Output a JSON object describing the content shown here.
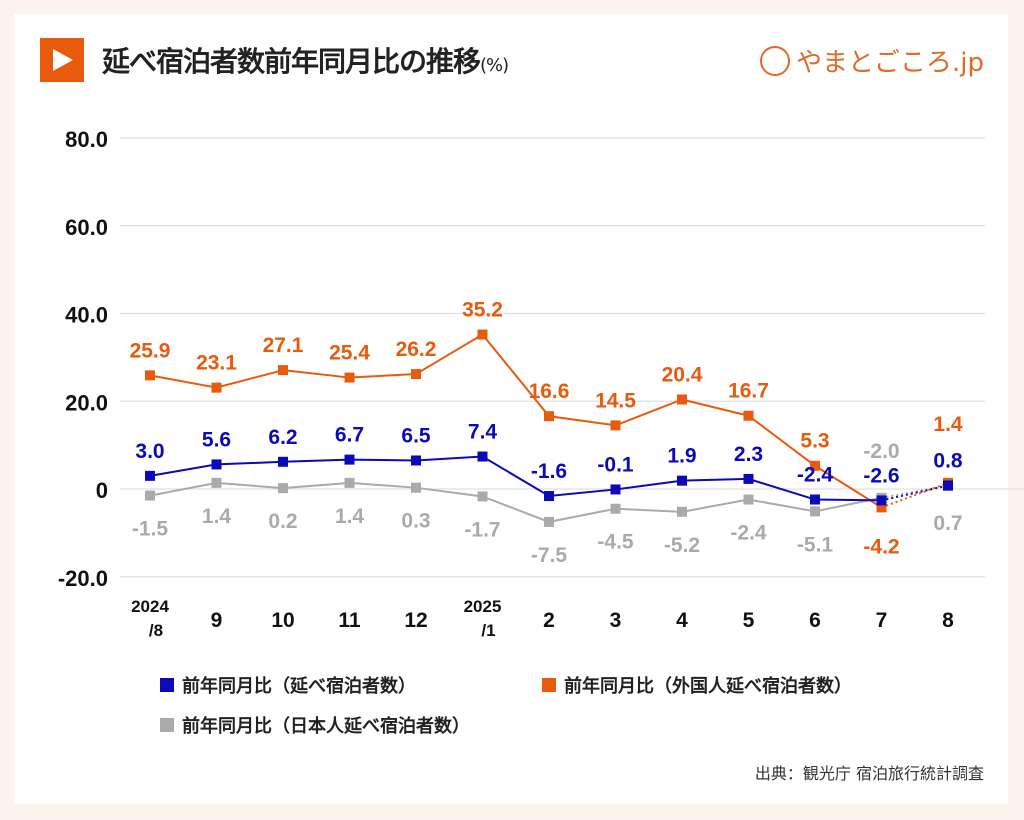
{
  "title": "延べ宿泊者数前年同月比の推移",
  "title_unit": "(%)",
  "logo_text": "やまとごころ.jp",
  "source": "出典：観光庁 宿泊旅行統計調査",
  "chart_data": {
    "type": "line",
    "title": "延べ宿泊者数前年同月比の推移(%)",
    "categories": [
      "2024/8",
      "9",
      "10",
      "11",
      "12",
      "2025/1",
      "2",
      "3",
      "4",
      "5",
      "6",
      "7",
      "8"
    ],
    "ylim": [
      -20,
      80
    ],
    "yticks": [
      80,
      60,
      40,
      20,
      0,
      -20
    ],
    "ytick_labels": [
      "80.0",
      "60.0",
      "40.0",
      "20.0",
      "0",
      "-20.0"
    ],
    "grid": true,
    "legend_position": "bottom",
    "last_segment_dotted": true,
    "series": [
      {
        "name": "前年同月比（延べ宿泊者数）",
        "color": "#0a0ab8",
        "values": [
          3.0,
          5.6,
          6.2,
          6.7,
          6.5,
          7.4,
          -1.6,
          -0.1,
          1.9,
          2.3,
          -2.4,
          -2.6,
          0.8
        ],
        "labels": [
          "3.0",
          "5.6",
          "6.2",
          "6.7",
          "6.5",
          "7.4",
          "-1.6",
          "-0.1",
          "1.9",
          "2.3",
          "-2.4",
          "-2.6",
          "0.8"
        ]
      },
      {
        "name": "前年同月比（外国人延べ宿泊者数）",
        "color": "#e85a0c",
        "values": [
          25.9,
          23.1,
          27.1,
          25.4,
          26.2,
          35.2,
          16.6,
          14.5,
          20.4,
          16.7,
          5.3,
          -4.2,
          1.4
        ],
        "labels": [
          "25.9",
          "23.1",
          "27.1",
          "25.4",
          "26.2",
          "35.2",
          "16.6",
          "14.5",
          "20.4",
          "16.7",
          "5.3",
          "-4.2",
          "1.4"
        ]
      },
      {
        "name": "前年同月比（日本人延べ宿泊者数）",
        "color": "#aaaaaa",
        "values": [
          -1.5,
          1.4,
          0.2,
          1.4,
          0.3,
          -1.7,
          -7.5,
          -4.5,
          -5.2,
          -2.4,
          -5.1,
          -2.0,
          0.7
        ],
        "labels": [
          "-1.5",
          "1.4",
          "0.2",
          "1.4",
          "0.3",
          "-1.7",
          "-7.5",
          "-4.5",
          "-5.2",
          "-2.4",
          "-5.1",
          "-2.0",
          "0.7"
        ]
      }
    ]
  }
}
